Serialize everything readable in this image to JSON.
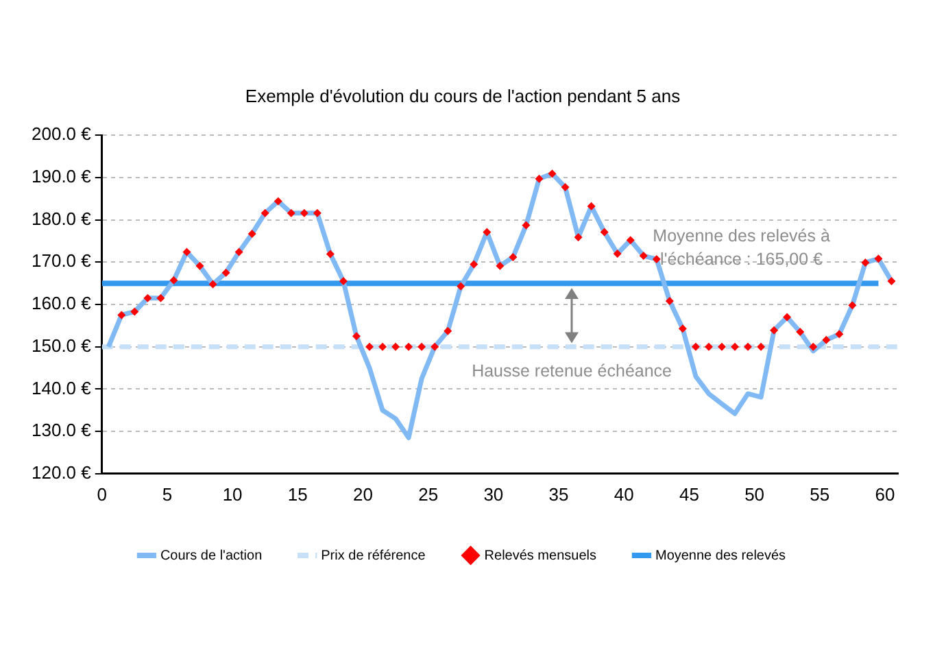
{
  "chart_data": {
    "type": "line",
    "title": "Exemple d'évolution du cours de l'action pendant 5 ans",
    "xlim": [
      0,
      61
    ],
    "xticks": [
      0,
      5,
      10,
      15,
      20,
      25,
      30,
      35,
      40,
      45,
      50,
      55,
      60
    ],
    "ylim": [
      120,
      200
    ],
    "yticks": [
      {
        "value": 120,
        "label": "120.0 €"
      },
      {
        "value": 130,
        "label": "130.0 €"
      },
      {
        "value": 140,
        "label": "140.0 €"
      },
      {
        "value": 150,
        "label": "150.0 €"
      },
      {
        "value": 160,
        "label": "160.0 €"
      },
      {
        "value": 170,
        "label": "170.0 €"
      },
      {
        "value": 180,
        "label": "180.0 €"
      },
      {
        "value": 190,
        "label": "190.0 €"
      },
      {
        "value": 200,
        "label": "200.0 €"
      }
    ],
    "grid": "y",
    "legend": "bottom",
    "series": [
      {
        "name": "Cours de l'action",
        "color": "#80b9f4",
        "marker": "none",
        "line_style": "solid",
        "x": [
          0.5,
          1.5,
          2.5,
          3.5,
          4.5,
          5.5,
          6.5,
          7.5,
          8.5,
          9.5,
          10.5,
          11.5,
          12.5,
          13.5,
          14.5,
          15.5,
          16.5,
          17.5,
          18.5,
          19.5,
          20.5,
          21.5,
          22.5,
          23.5,
          24.5,
          25.5,
          26.5,
          27.5,
          28.5,
          29.5,
          30.5,
          31.5,
          32.5,
          33.5,
          34.5,
          35.5,
          36.5,
          37.5,
          38.5,
          39.5,
          40.5,
          41.5,
          42.5,
          43.5,
          44.5,
          45.5,
          46.5,
          47.5,
          48.5,
          49.5,
          50.5,
          51.5,
          52.5,
          53.5,
          54.5,
          55.5,
          56.5,
          57.5,
          58.5,
          59.5,
          60.5
        ],
        "values": [
          150,
          157.5,
          158.3,
          161.5,
          161.5,
          165.7,
          172.4,
          169.1,
          164.8,
          167.5,
          172.4,
          176.7,
          181.6,
          184.4,
          181.6,
          181.6,
          181.6,
          171.9,
          165.5,
          152.5,
          145,
          135,
          133,
          128.5,
          142.5,
          150,
          153.7,
          164.3,
          169.5,
          177.1,
          169.1,
          171.2,
          178.7,
          189.7,
          190.9,
          187.7,
          175.9,
          183.2,
          177.1,
          172,
          175.2,
          171.5,
          170.7,
          160.8,
          154.3,
          143,
          138.9,
          136.5,
          134.2,
          138.9,
          138.1,
          153.9,
          157,
          153.5,
          149,
          151.6,
          153,
          159.8,
          169.9,
          170.8,
          165.5
        ]
      },
      {
        "name": "Prix de référence",
        "color": "#c6e0f7",
        "marker": "none",
        "line_style": "dashed",
        "x": [
          0,
          61
        ],
        "values": [
          150,
          150
        ]
      },
      {
        "name": "Relevés mensuels",
        "type": "scatter",
        "color": "#ff0000",
        "marker": "diamond",
        "x": [
          1.5,
          2.5,
          3.5,
          4.5,
          5.5,
          6.5,
          7.5,
          8.5,
          9.5,
          10.5,
          11.5,
          12.5,
          13.5,
          14.5,
          15.5,
          16.5,
          17.5,
          18.5,
          19.5,
          20.5,
          21.5,
          22.5,
          23.5,
          24.5,
          25.5,
          26.5,
          27.5,
          28.5,
          29.5,
          30.5,
          31.5,
          32.5,
          33.5,
          34.5,
          35.5,
          36.5,
          37.5,
          38.5,
          39.5,
          40.5,
          41.5,
          42.5,
          43.5,
          44.5,
          45.5,
          46.5,
          47.5,
          48.5,
          49.5,
          50.5,
          51.5,
          52.5,
          53.5,
          54.5,
          55.5,
          56.5,
          57.5,
          58.5,
          59.5,
          60.5
        ],
        "values": [
          157.5,
          158.3,
          161.5,
          161.5,
          165.7,
          172.4,
          169.1,
          164.8,
          167.5,
          172.4,
          176.7,
          181.6,
          184.4,
          181.6,
          181.6,
          181.6,
          171.9,
          165.5,
          152.5,
          150,
          150,
          150,
          150,
          150,
          150,
          153.7,
          164.3,
          169.5,
          177.1,
          169.1,
          171.2,
          178.7,
          189.7,
          190.9,
          187.7,
          175.9,
          183.2,
          177.1,
          172,
          175.2,
          171.5,
          170.7,
          160.8,
          154.3,
          150,
          150,
          150,
          150,
          150,
          150,
          153.9,
          157,
          153.5,
          150,
          151.6,
          153,
          159.8,
          169.9,
          170.8,
          165.5
        ]
      },
      {
        "name": "Moyenne des relevés",
        "color": "#3399ee",
        "marker": "none",
        "line_style": "solid",
        "x": [
          0,
          59.5
        ],
        "values": [
          165,
          165
        ]
      }
    ],
    "annotations": [
      {
        "text": "Moyenne des relevés à l'échéance : 165,00 €",
        "x": 49,
        "y": 165
      },
      {
        "text": "Hausse retenue échéance",
        "x": 36,
        "y": 150
      }
    ]
  }
}
